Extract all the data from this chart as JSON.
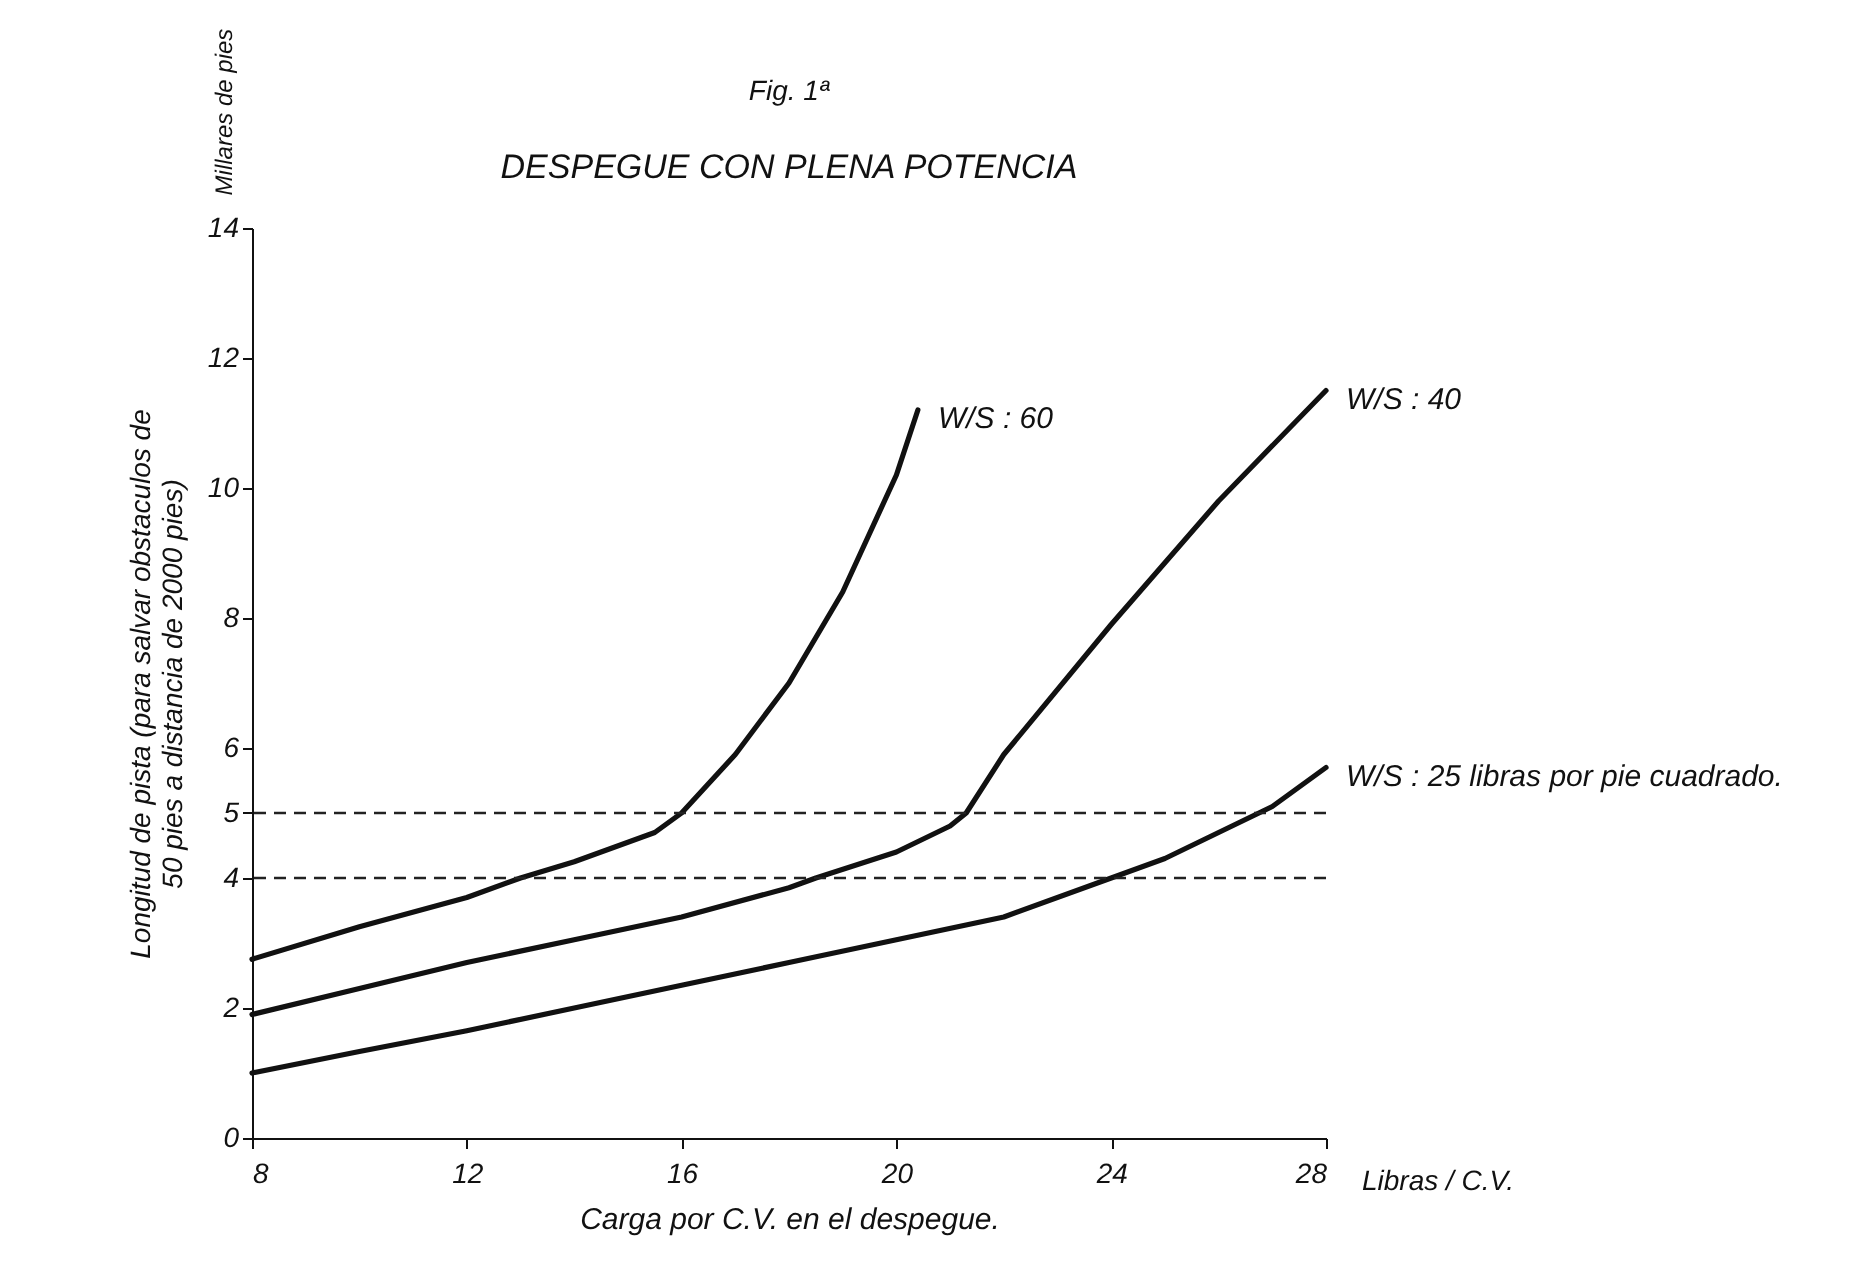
{
  "chart_data": {
    "type": "line",
    "title": "DESPEGUE CON PLENA POTENCIA",
    "xlabel": "Carga por C.V. en el despegue.",
    "ylabel": "Longitud de pista (para salvar obstaculos de 50 pies a distancia de 2000 pies)",
    "annotations": [
      "Fig. 1ª",
      "Millares de pies",
      "Libras / C.V."
    ],
    "xlim": [
      8,
      28
    ],
    "xticks": [
      8,
      12,
      16,
      20,
      24,
      28
    ],
    "ylim": [
      0,
      14
    ],
    "yticks": [
      0,
      2,
      4,
      5,
      6,
      8,
      10,
      12,
      14
    ],
    "grid": false,
    "legend": false,
    "line_style": "solid",
    "marker": "none",
    "ref_lines": [
      {
        "axis": "y",
        "value": 5,
        "line_style": "dashed",
        "color": "#222222"
      },
      {
        "axis": "y",
        "value": 4,
        "line_style": "dashed",
        "color": "#222222"
      }
    ],
    "series": [
      {
        "name": "W/S : 60",
        "color": "#111111",
        "x": [
          8,
          10,
          12,
          13,
          14,
          15,
          15.5,
          16,
          17,
          18,
          19,
          20,
          20.4
        ],
        "values": [
          2.75,
          3.25,
          3.7,
          4.0,
          4.25,
          4.55,
          4.7,
          5.0,
          5.9,
          7.0,
          8.4,
          10.2,
          11.2
        ]
      },
      {
        "name": "W/S : 40",
        "color": "#111111",
        "x": [
          8,
          10,
          12,
          14,
          16,
          18,
          18.5,
          20,
          21,
          21.3,
          22,
          24,
          26,
          28
        ],
        "values": [
          1.9,
          2.3,
          2.7,
          3.05,
          3.4,
          3.85,
          4.0,
          4.4,
          4.8,
          5.0,
          5.9,
          7.9,
          9.8,
          11.5
        ]
      },
      {
        "name": "W/S : 25 libras por pie cuadrado.",
        "color": "#111111",
        "x": [
          8,
          10,
          12,
          14,
          16,
          18,
          20,
          22,
          24,
          25,
          26,
          27,
          28
        ],
        "values": [
          1.0,
          1.33,
          1.65,
          2.0,
          2.35,
          2.7,
          3.05,
          3.4,
          4.0,
          4.3,
          4.7,
          5.1,
          5.7
        ]
      }
    ]
  }
}
